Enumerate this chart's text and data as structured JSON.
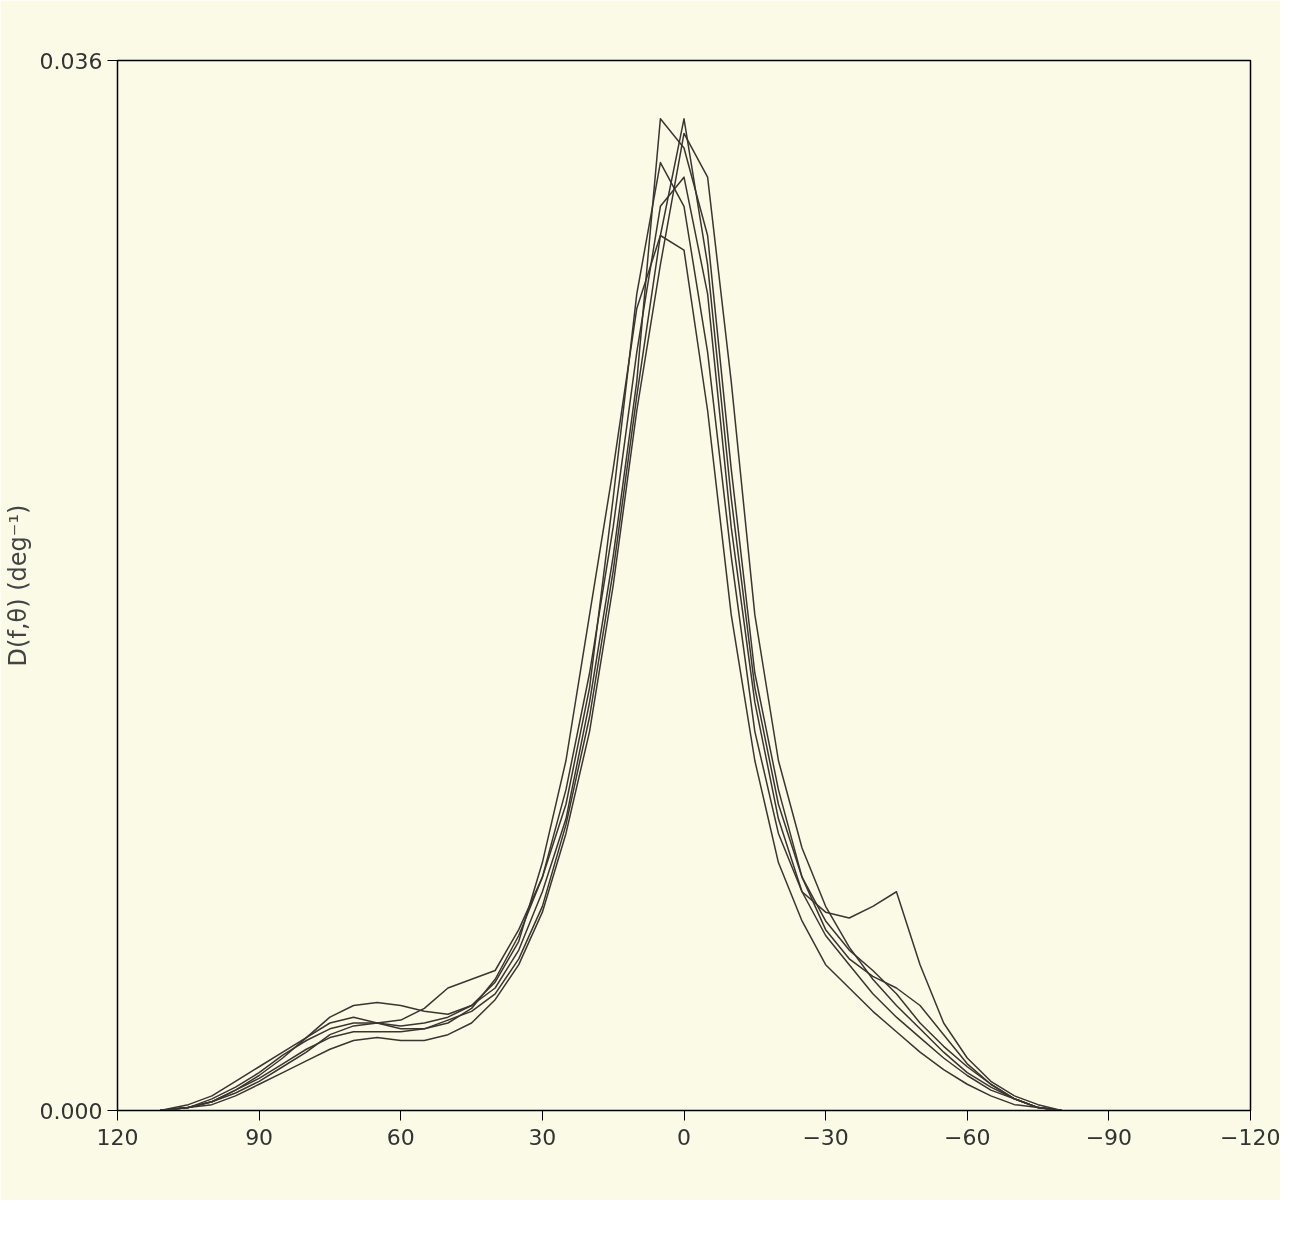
{
  "chart_data": {
    "type": "line",
    "ylabel": "D(f,θ) (deg⁻¹)",
    "x": [
      111,
      105,
      100,
      95,
      90,
      85,
      80,
      75,
      70,
      65,
      60,
      55,
      50,
      45,
      40,
      35,
      30,
      25,
      20,
      15,
      10,
      5,
      0,
      -5,
      -10,
      -15,
      -20,
      -25,
      -30,
      -35,
      -40,
      -45,
      -50,
      -55,
      -60,
      -65,
      -70,
      -75,
      -80
    ],
    "series": [
      {
        "color": "#3a3530",
        "values": [
          0,
          0.0002,
          0.0005,
          0.001,
          0.0015,
          0.002,
          0.0025,
          0.003,
          0.0032,
          0.003,
          0.0028,
          0.0028,
          0.003,
          0.0035,
          0.0045,
          0.006,
          0.008,
          0.011,
          0.015,
          0.02,
          0.026,
          0.031,
          0.032,
          0.028,
          0.02,
          0.014,
          0.01,
          0.0075,
          0.006,
          0.005,
          0.004,
          0.0032,
          0.0025,
          0.0018,
          0.0012,
          0.0007,
          0.0004,
          0.0001,
          0
        ]
      },
      {
        "color": "#3a3530",
        "values": [
          0,
          0.0001,
          0.0003,
          0.0007,
          0.0012,
          0.0018,
          0.0025,
          0.0032,
          0.0036,
          0.0037,
          0.0036,
          0.0034,
          0.0033,
          0.0036,
          0.0042,
          0.0055,
          0.0075,
          0.01,
          0.014,
          0.019,
          0.025,
          0.034,
          0.033,
          0.03,
          0.022,
          0.015,
          0.011,
          0.008,
          0.0065,
          0.0055,
          0.0048,
          0.004,
          0.003,
          0.0022,
          0.0015,
          0.0009,
          0.0004,
          0.0001,
          0
        ]
      },
      {
        "color": "#3a3530",
        "values": [
          0,
          0.0001,
          0.0004,
          0.0008,
          0.0013,
          0.0019,
          0.0024,
          0.0028,
          0.003,
          0.003,
          0.0031,
          0.0035,
          0.0042,
          0.0045,
          0.0048,
          0.0062,
          0.008,
          0.0105,
          0.0145,
          0.021,
          0.028,
          0.0325,
          0.031,
          0.026,
          0.019,
          0.013,
          0.0095,
          0.0075,
          0.0068,
          0.0066,
          0.007,
          0.0075,
          0.005,
          0.003,
          0.0018,
          0.001,
          0.0005,
          0.0002,
          0
        ]
      },
      {
        "color": "#3a3530",
        "values": [
          0,
          0.0001,
          0.0002,
          0.0005,
          0.0009,
          0.0013,
          0.0017,
          0.0021,
          0.0024,
          0.0025,
          0.0024,
          0.0024,
          0.0026,
          0.003,
          0.0038,
          0.005,
          0.0068,
          0.0095,
          0.013,
          0.018,
          0.024,
          0.029,
          0.0335,
          0.032,
          0.025,
          0.017,
          0.012,
          0.009,
          0.007,
          0.0056,
          0.0045,
          0.0036,
          0.0028,
          0.002,
          0.0013,
          0.0008,
          0.0004,
          0.0001,
          0
        ]
      },
      {
        "color": "#3a3530",
        "values": [
          0,
          0.0001,
          0.0003,
          0.0006,
          0.001,
          0.0015,
          0.002,
          0.0026,
          0.0029,
          0.003,
          0.0029,
          0.003,
          0.0032,
          0.0036,
          0.0044,
          0.0058,
          0.0085,
          0.012,
          0.017,
          0.022,
          0.0275,
          0.03,
          0.0295,
          0.024,
          0.017,
          0.012,
          0.0085,
          0.0065,
          0.005,
          0.0042,
          0.0034,
          0.0027,
          0.002,
          0.0014,
          0.0009,
          0.0005,
          0.0002,
          0.0001,
          0
        ]
      },
      {
        "color": "#3a3530",
        "values": [
          0,
          0.0001,
          0.0003,
          0.0007,
          0.0011,
          0.0016,
          0.0021,
          0.0025,
          0.0027,
          0.0027,
          0.0027,
          0.0028,
          0.0031,
          0.0034,
          0.004,
          0.0052,
          0.007,
          0.0098,
          0.0135,
          0.0185,
          0.0245,
          0.03,
          0.034,
          0.029,
          0.021,
          0.0145,
          0.0105,
          0.008,
          0.0062,
          0.0052,
          0.0046,
          0.0042,
          0.0036,
          0.0026,
          0.0016,
          0.0009,
          0.0004,
          0.0001,
          0
        ]
      }
    ],
    "xlim": [
      120,
      -120
    ],
    "xticks": [
      {
        "value": 120,
        "label": "120"
      },
      {
        "value": 90,
        "label": "90"
      },
      {
        "value": 60,
        "label": "60"
      },
      {
        "value": 30,
        "label": "30"
      },
      {
        "value": 0,
        "label": "0"
      },
      {
        "value": -30,
        "label": "−30"
      },
      {
        "value": -60,
        "label": "−60"
      },
      {
        "value": -90,
        "label": "−90"
      },
      {
        "value": -120,
        "label": "−120"
      }
    ],
    "ylim": [
      0,
      0.036
    ],
    "yticks": [
      {
        "value": 0,
        "label": "0.000"
      },
      {
        "value": 0.036,
        "label": "0.036"
      }
    ],
    "grid": false,
    "marker": "none",
    "line_style": "solid"
  }
}
